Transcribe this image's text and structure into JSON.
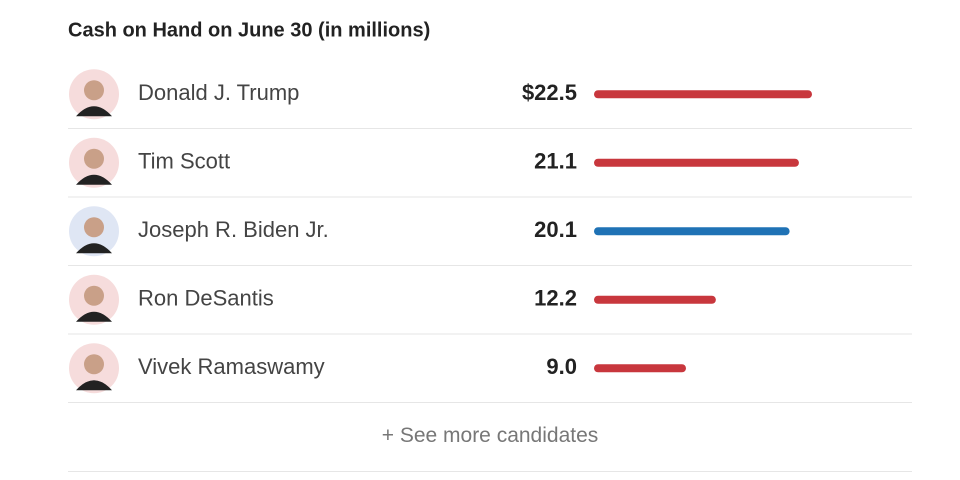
{
  "chart_data": {
    "type": "bar",
    "title": "Cash on Hand on June 30 (in millions)",
    "categories": [
      "Donald J. Trump",
      "Tim Scott",
      "Joseph R. Biden Jr.",
      "Ron DeSantis",
      "Vivek Ramaswamy"
    ],
    "values": [
      22.5,
      21.1,
      20.1,
      12.2,
      9.0
    ],
    "value_labels": [
      "$22.5",
      "21.1",
      "20.1",
      "12.2",
      "9.0"
    ],
    "colors": [
      "#c8373d",
      "#c8373d",
      "#1f72b5",
      "#c8373d",
      "#c8373d"
    ]
  },
  "button": "+ See more candidates"
}
